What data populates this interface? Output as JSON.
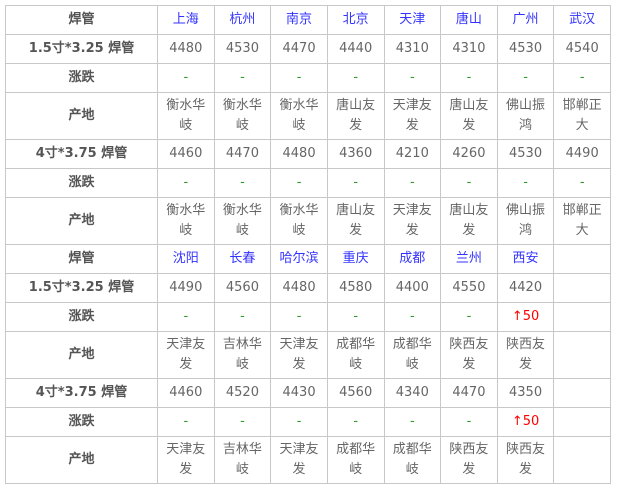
{
  "colors": {
    "title": "#ff0000",
    "city": "#3333ff",
    "flat": "#2a9a2a",
    "up": "#ff0000"
  },
  "sections": [
    {
      "title": "焊管",
      "cities": [
        "上海",
        "杭州",
        "南京",
        "北京",
        "天津",
        "唐山",
        "广州",
        "武汉"
      ],
      "rows": [
        {
          "label": "1.5寸*3.25 焊管",
          "type": "price",
          "values": [
            "4480",
            "4530",
            "4470",
            "4440",
            "4310",
            "4310",
            "4530",
            "4540"
          ]
        },
        {
          "label": "涨跌",
          "type": "change",
          "values": [
            "-",
            "-",
            "-",
            "-",
            "-",
            "-",
            "-",
            "-"
          ]
        },
        {
          "label": "产地",
          "type": "origin",
          "values": [
            "衡水华岐",
            "衡水华岐",
            "衡水华岐",
            "唐山友发",
            "天津友发",
            "唐山友发",
            "佛山振鸿",
            "邯郸正大"
          ]
        },
        {
          "label": "4寸*3.75 焊管",
          "type": "price",
          "values": [
            "4460",
            "4470",
            "4480",
            "4360",
            "4210",
            "4260",
            "4530",
            "4490"
          ]
        },
        {
          "label": "涨跌",
          "type": "change",
          "values": [
            "-",
            "-",
            "-",
            "-",
            "-",
            "-",
            "-",
            "-"
          ]
        },
        {
          "label": "产地",
          "type": "origin",
          "values": [
            "衡水华岐",
            "衡水华岐",
            "衡水华岐",
            "唐山友发",
            "天津友发",
            "唐山友发",
            "佛山振鸿",
            "邯郸正大"
          ]
        }
      ]
    },
    {
      "title": "焊管",
      "cities": [
        "沈阳",
        "长春",
        "哈尔滨",
        "重庆",
        "成都",
        "兰州",
        "西安",
        ""
      ],
      "rows": [
        {
          "label": "1.5寸*3.25 焊管",
          "type": "price",
          "values": [
            "4490",
            "4560",
            "4480",
            "4580",
            "4400",
            "4550",
            "4420",
            ""
          ]
        },
        {
          "label": "涨跌",
          "type": "change",
          "values": [
            "-",
            "-",
            "-",
            "-",
            "-",
            "-",
            "↑50",
            ""
          ]
        },
        {
          "label": "产地",
          "type": "origin",
          "values": [
            "天津友发",
            "吉林华岐",
            "天津友发",
            "成都华岐",
            "成都华岐",
            "陕西友发",
            "陕西友发",
            ""
          ]
        },
        {
          "label": "4寸*3.75 焊管",
          "type": "price",
          "values": [
            "4460",
            "4520",
            "4430",
            "4560",
            "4340",
            "4470",
            "4350",
            ""
          ]
        },
        {
          "label": "涨跌",
          "type": "change",
          "values": [
            "-",
            "-",
            "-",
            "-",
            "-",
            "-",
            "↑50",
            ""
          ]
        },
        {
          "label": "产地",
          "type": "origin",
          "values": [
            "天津友发",
            "吉林华岐",
            "天津友发",
            "成都华岐",
            "成都华岐",
            "陕西友发",
            "陕西友发",
            ""
          ]
        }
      ]
    }
  ]
}
